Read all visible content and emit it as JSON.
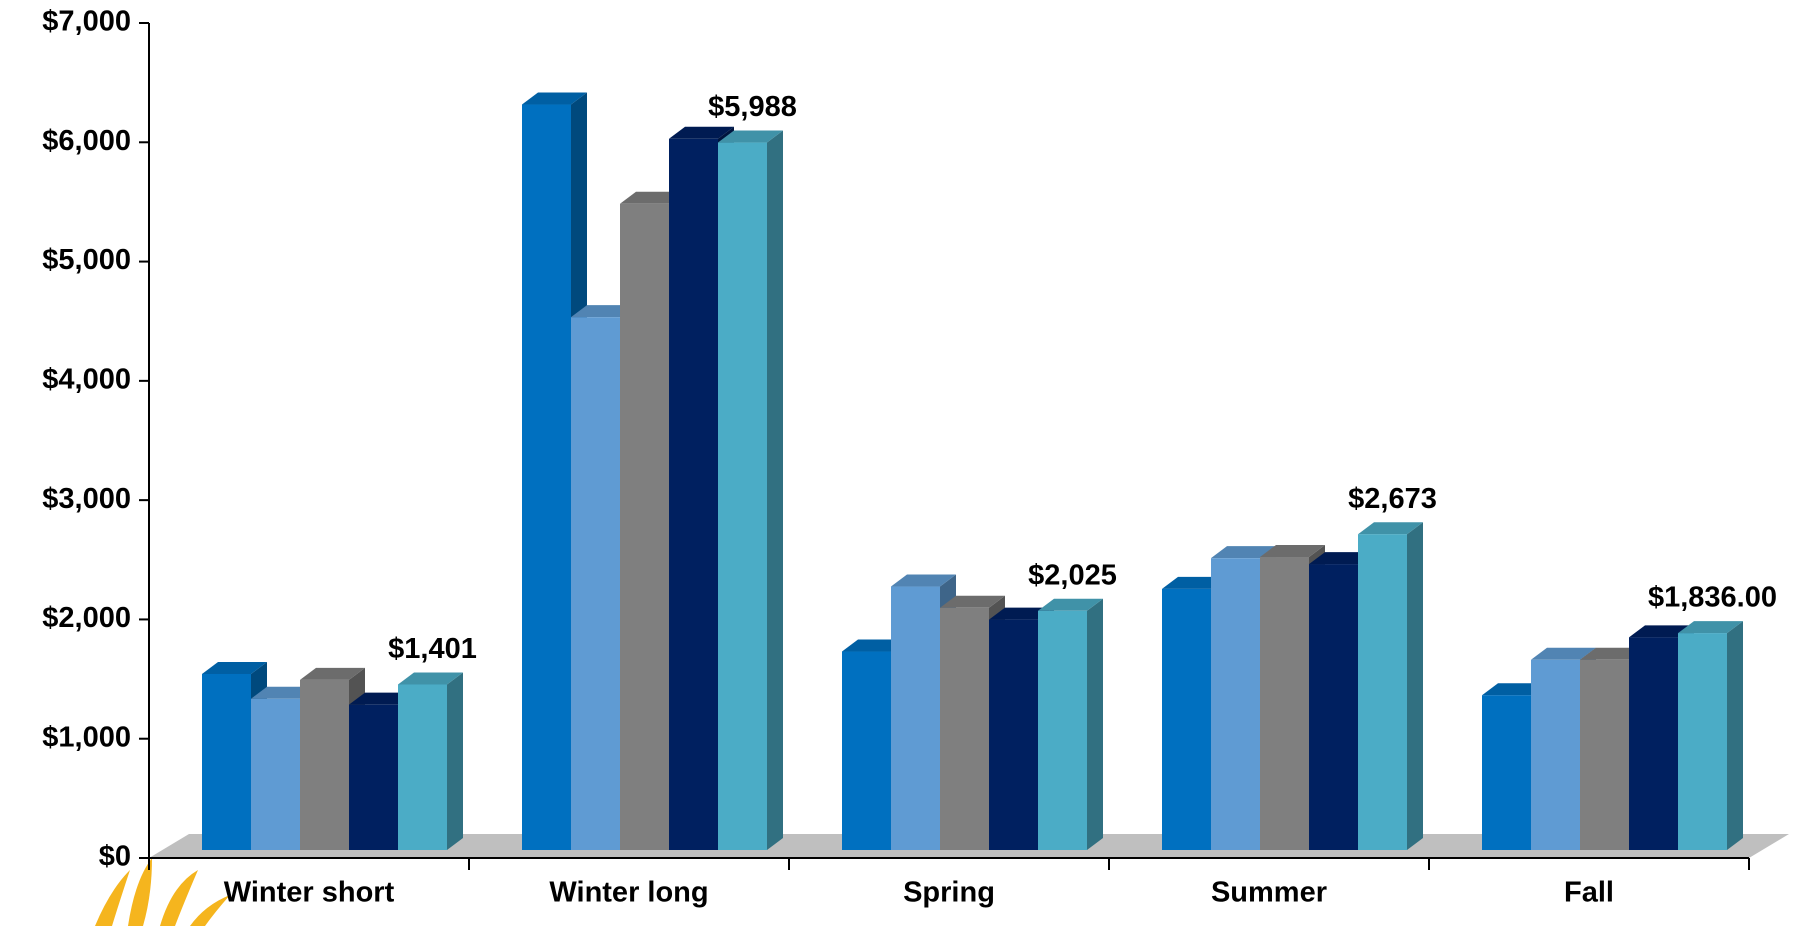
{
  "chart_data": {
    "type": "bar3d",
    "categories": [
      "Winter short",
      "Winter long",
      "Spring",
      "Summer",
      "Fall"
    ],
    "series": [
      {
        "color": "#0070c0",
        "values": [
          1490,
          6310,
          1680,
          2210,
          1310
        ]
      },
      {
        "color": "#5f9bd3",
        "values": [
          1280,
          4510,
          2230,
          2470,
          1610
        ]
      },
      {
        "color": "#7f7f7f",
        "values": [
          1440,
          5470,
          2050,
          2480,
          1610
        ]
      },
      {
        "color": "#002060",
        "values": [
          1230,
          6020,
          1950,
          2420,
          1800
        ]
      },
      {
        "color": "#4bacc6",
        "values": [
          1401,
          5988,
          2025,
          2673,
          1836
        ],
        "value_labels": [
          "$1,401",
          "$5,988",
          "$2,025",
          "$2,673",
          "$1,836.00"
        ]
      }
    ],
    "ylim": [
      0,
      7000
    ],
    "yticks": [
      {
        "value": 0,
        "label": "$0"
      },
      {
        "value": 1000,
        "label": "$1,000"
      },
      {
        "value": 2000,
        "label": "$2,000"
      },
      {
        "value": 3000,
        "label": "$3,000"
      },
      {
        "value": 4000,
        "label": "$4,000"
      },
      {
        "value": 5000,
        "label": "$5,000"
      },
      {
        "value": 6000,
        "label": "$6,000"
      },
      {
        "value": 7000,
        "label": "$7,000"
      }
    ]
  }
}
